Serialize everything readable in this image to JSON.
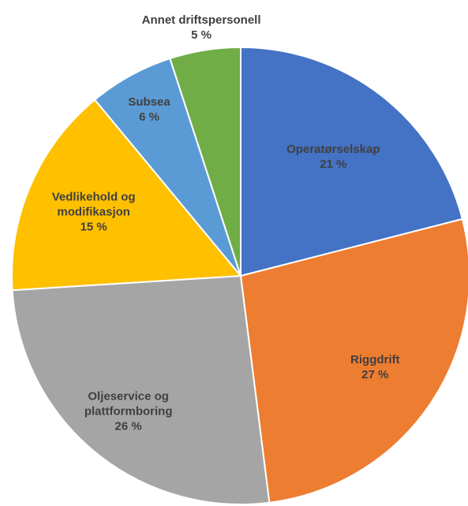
{
  "chart_data": {
    "type": "pie",
    "categories": [
      "Operatørselskap",
      "Riggdrift",
      "Oljeservice og plattformboring",
      "Vedlikehold og modifikasjon",
      "Subsea",
      "Annet driftspersonell"
    ],
    "values": [
      21,
      27,
      26,
      15,
      6,
      5
    ],
    "value_labels": [
      "21 %",
      "27 %",
      "26 %",
      "15 %",
      "6 %",
      "5 %"
    ],
    "colors": [
      "#4472c4",
      "#ed7d31",
      "#a5a5a5",
      "#ffc000",
      "#5b9bd5",
      "#70ad47"
    ]
  }
}
